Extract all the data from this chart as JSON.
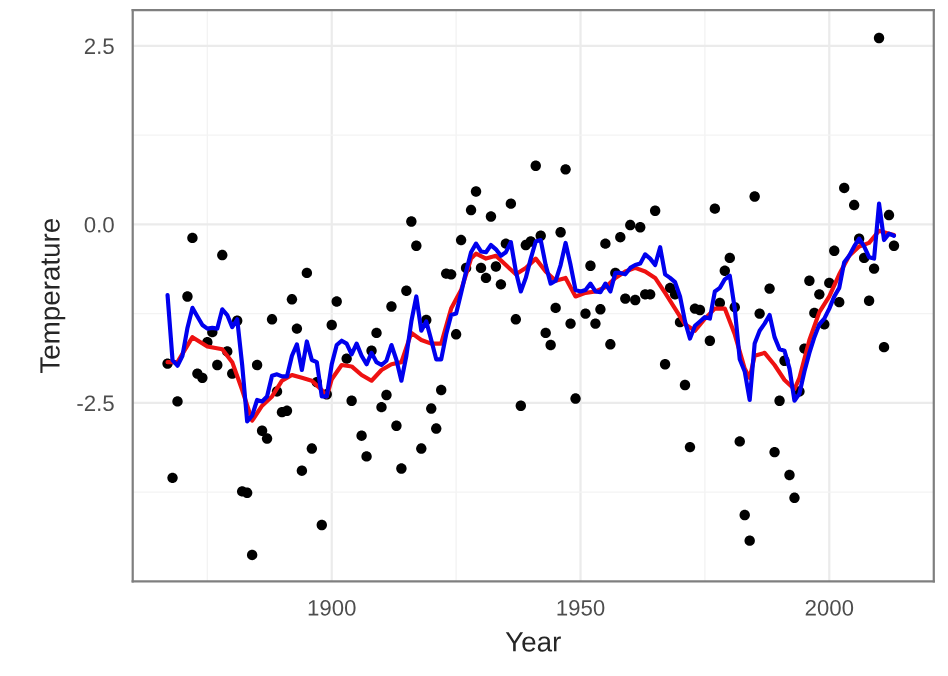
{
  "chart_data": {
    "type": "scatter",
    "xlabel": "Year",
    "ylabel": "Temperature",
    "xlim": [
      1860,
      2021
    ],
    "ylim": [
      -5.0,
      3.0
    ],
    "xticks": [
      1900,
      1950,
      2000
    ],
    "yticks": [
      -2.5,
      {
        "value": 0,
        "label": "0.0"
      },
      2.5
    ],
    "grid": true,
    "legend": false,
    "series": [
      {
        "color": "#000000",
        "marker": "circle",
        "x": [
          1867,
          1868,
          1869,
          1871,
          1872,
          1873,
          1874,
          1875,
          1876,
          1877,
          1878,
          1879,
          1880,
          1881,
          1882,
          1883,
          1884,
          1885,
          1886,
          1887,
          1888,
          1889,
          1890,
          1891,
          1892,
          1893,
          1894,
          1895,
          1896,
          1897,
          1898,
          1899,
          1900,
          1901,
          1903,
          1904,
          1906,
          1907,
          1908,
          1909,
          1910,
          1911,
          1912,
          1913,
          1914,
          1915,
          1916,
          1917,
          1918,
          1919,
          1920,
          1921,
          1922,
          1923,
          1924,
          1925,
          1926,
          1927,
          1928,
          1929,
          1930,
          1931,
          1932,
          1933,
          1934,
          1935,
          1936,
          1937,
          1938,
          1939,
          1940,
          1941,
          1942,
          1943,
          1944,
          1945,
          1946,
          1947,
          1948,
          1949,
          1951,
          1952,
          1953,
          1954,
          1955,
          1956,
          1957,
          1958,
          1959,
          1960,
          1961,
          1962,
          1963,
          1964,
          1965,
          1967,
          1968,
          1969,
          1970,
          1971,
          1972,
          1973,
          1974,
          1976,
          1977,
          1978,
          1979,
          1980,
          1981,
          1982,
          1983,
          1984,
          1985,
          1986,
          1988,
          1989,
          1990,
          1991,
          1992,
          1993,
          1994,
          1995,
          1996,
          1997,
          1998,
          1999,
          2000,
          2001,
          2002,
          2003,
          2005,
          2006,
          2007,
          2008,
          2009,
          2010,
          2011,
          2012,
          2013
        ],
        "values": [
          -1.95,
          -3.55,
          -2.48,
          -1.01,
          -0.19,
          -2.09,
          -2.15,
          -1.65,
          -1.51,
          -1.97,
          -0.43,
          -1.78,
          -2.09,
          -1.35,
          -3.74,
          -3.76,
          -4.63,
          -1.97,
          -2.89,
          -3.0,
          -1.33,
          -2.34,
          -2.63,
          -2.61,
          -1.05,
          -1.46,
          -3.45,
          -0.68,
          -3.14,
          -2.21,
          -4.21,
          -2.38,
          -1.41,
          -1.08,
          -1.88,
          -2.47,
          -2.96,
          -3.25,
          -1.77,
          -1.52,
          -2.56,
          -2.39,
          -1.15,
          -2.82,
          -3.42,
          -0.93,
          0.04,
          -0.3,
          -3.14,
          -1.34,
          -2.58,
          -2.86,
          -2.32,
          -0.69,
          -0.7,
          -1.54,
          -0.22,
          -0.61,
          0.2,
          0.46,
          -0.61,
          -0.75,
          0.11,
          -0.59,
          -0.84,
          -0.27,
          0.29,
          -1.33,
          -2.54,
          -0.29,
          -0.24,
          0.82,
          -0.16,
          -1.52,
          -1.69,
          -1.17,
          -0.11,
          0.77,
          -1.39,
          -2.44,
          -1.25,
          -0.58,
          -1.39,
          -1.19,
          -0.27,
          -1.68,
          -0.68,
          -0.18,
          -1.04,
          -0.01,
          -1.06,
          -0.04,
          -0.98,
          -0.98,
          0.19,
          -1.96,
          -0.89,
          -0.98,
          -1.37,
          -2.25,
          -3.12,
          -1.18,
          -1.2,
          -1.63,
          0.22,
          -1.1,
          -0.65,
          -0.47,
          -1.16,
          -3.04,
          -4.07,
          -4.43,
          0.39,
          -1.25,
          -0.9,
          -3.19,
          -2.47,
          -1.91,
          -3.51,
          -3.83,
          -2.34,
          -1.74,
          -0.79,
          -1.24,
          -0.98,
          -1.4,
          -0.82,
          -0.37,
          -1.09,
          0.51,
          0.27,
          -0.2,
          -0.47,
          -1.07,
          -0.62,
          2.61,
          -1.72,
          0.13,
          -0.3
        ]
      },
      {
        "type": "line",
        "color": "#ee1111",
        "line_style": "solid",
        "marker": "none",
        "x": [
          1867,
          1869,
          1872,
          1875,
          1878,
          1880,
          1882,
          1884,
          1886,
          1888,
          1890,
          1892,
          1894,
          1896,
          1898,
          1899,
          1900,
          1902,
          1904,
          1906,
          1908,
          1910,
          1912,
          1914,
          1916,
          1918,
          1920,
          1922,
          1924,
          1926,
          1928,
          1929,
          1931,
          1933,
          1935,
          1937,
          1939,
          1941,
          1943,
          1945,
          1947,
          1949,
          1951,
          1953,
          1955,
          1957,
          1959,
          1961,
          1963,
          1965,
          1967,
          1969,
          1971,
          1973,
          1975,
          1977,
          1979,
          1981,
          1983,
          1984,
          1985,
          1987,
          1989,
          1991,
          1993,
          1994,
          1996,
          1998,
          2000,
          2002,
          2004,
          2006,
          2008,
          2010,
          2012,
          2013
        ],
        "values": [
          -1.93,
          -1.93,
          -1.58,
          -1.71,
          -1.75,
          -1.93,
          -2.32,
          -2.75,
          -2.54,
          -2.41,
          -2.19,
          -2.11,
          -2.15,
          -2.19,
          -2.32,
          -2.41,
          -2.17,
          -1.97,
          -1.99,
          -2.11,
          -2.19,
          -2.04,
          -1.96,
          -1.93,
          -1.52,
          -1.62,
          -1.67,
          -1.67,
          -1.18,
          -0.92,
          -0.48,
          -0.41,
          -0.48,
          -0.44,
          -0.57,
          -0.7,
          -0.61,
          -0.48,
          -0.66,
          -0.79,
          -0.75,
          -1.01,
          -0.96,
          -0.94,
          -0.88,
          -0.75,
          -0.66,
          -0.61,
          -0.66,
          -0.75,
          -0.96,
          -1.18,
          -1.4,
          -1.49,
          -1.32,
          -1.18,
          -1.18,
          -1.54,
          -2.02,
          -2.15,
          -1.84,
          -1.8,
          -1.97,
          -2.18,
          -2.31,
          -2.15,
          -1.62,
          -1.23,
          -1.01,
          -0.7,
          -0.44,
          -0.31,
          -0.26,
          -0.09,
          -0.13,
          -0.15
        ]
      },
      {
        "type": "line",
        "color": "#0000ee",
        "line_style": "solid",
        "marker": "none",
        "x": [
          1867,
          1868,
          1869,
          1870,
          1871,
          1872,
          1873,
          1874,
          1875,
          1876,
          1877,
          1878,
          1879,
          1880,
          1881,
          1882,
          1883,
          1884,
          1885,
          1886,
          1887,
          1888,
          1889,
          1890,
          1891,
          1892,
          1893,
          1894,
          1895,
          1896,
          1897,
          1898,
          1899,
          1900,
          1901,
          1902,
          1903,
          1904,
          1905,
          1906,
          1907,
          1908,
          1909,
          1910,
          1911,
          1912,
          1913,
          1914,
          1915,
          1916,
          1917,
          1918,
          1919,
          1920,
          1921,
          1922,
          1923,
          1924,
          1925,
          1926,
          1927,
          1928,
          1929,
          1930,
          1931,
          1932,
          1933,
          1934,
          1935,
          1936,
          1937,
          1938,
          1939,
          1940,
          1941,
          1942,
          1943,
          1944,
          1945,
          1946,
          1947,
          1948,
          1949,
          1950,
          1951,
          1952,
          1953,
          1954,
          1955,
          1956,
          1957,
          1958,
          1959,
          1960,
          1961,
          1962,
          1963,
          1964,
          1965,
          1966,
          1967,
          1968,
          1969,
          1970,
          1971,
          1972,
          1973,
          1974,
          1975,
          1976,
          1977,
          1978,
          1979,
          1980,
          1981,
          1982,
          1983,
          1984,
          1985,
          1986,
          1987,
          1988,
          1989,
          1990,
          1991,
          1992,
          1993,
          1994,
          1995,
          1996,
          1997,
          1998,
          1999,
          2000,
          2001,
          2002,
          2003,
          2004,
          2005,
          2006,
          2007,
          2008,
          2009,
          2010,
          2011,
          2012,
          2013
        ],
        "values": [
          -0.99,
          -1.9,
          -1.98,
          -1.84,
          -1.45,
          -1.17,
          -1.29,
          -1.41,
          -1.46,
          -1.45,
          -1.46,
          -1.19,
          -1.27,
          -1.44,
          -1.33,
          -1.97,
          -2.76,
          -2.68,
          -2.46,
          -2.48,
          -2.41,
          -2.12,
          -2.1,
          -2.13,
          -2.13,
          -1.84,
          -1.68,
          -2.04,
          -1.64,
          -1.9,
          -1.93,
          -2.41,
          -2.41,
          -1.96,
          -1.69,
          -1.63,
          -1.67,
          -1.82,
          -1.67,
          -1.84,
          -1.96,
          -1.8,
          -1.93,
          -1.97,
          -1.91,
          -1.69,
          -1.9,
          -2.19,
          -1.84,
          -1.36,
          -1.01,
          -1.49,
          -1.36,
          -1.62,
          -1.89,
          -1.89,
          -1.54,
          -1.27,
          -1.25,
          -0.96,
          -0.66,
          -0.39,
          -0.27,
          -0.38,
          -0.39,
          -0.29,
          -0.35,
          -0.44,
          -0.39,
          -0.25,
          -0.66,
          -0.94,
          -0.75,
          -0.48,
          -0.24,
          -0.22,
          -0.57,
          -0.83,
          -0.79,
          -0.57,
          -0.26,
          -0.57,
          -0.92,
          -0.94,
          -0.92,
          -0.83,
          -0.94,
          -0.95,
          -0.83,
          -0.94,
          -0.68,
          -0.68,
          -0.7,
          -0.61,
          -0.57,
          -0.55,
          -0.42,
          -0.48,
          -0.57,
          -0.32,
          -0.7,
          -0.75,
          -0.81,
          -1.01,
          -1.36,
          -1.6,
          -1.42,
          -1.36,
          -1.3,
          -1.32,
          -0.94,
          -0.89,
          -0.77,
          -0.72,
          -1.18,
          -1.89,
          -2.06,
          -2.46,
          -1.67,
          -1.49,
          -1.39,
          -1.27,
          -1.58,
          -1.75,
          -1.77,
          -2.02,
          -2.47,
          -2.37,
          -2.06,
          -1.8,
          -1.58,
          -1.4,
          -1.32,
          -1.18,
          -1.01,
          -0.89,
          -0.53,
          -0.44,
          -0.31,
          -0.2,
          -0.31,
          -0.46,
          -0.48,
          0.29,
          -0.22,
          -0.13,
          -0.16
        ]
      }
    ]
  }
}
